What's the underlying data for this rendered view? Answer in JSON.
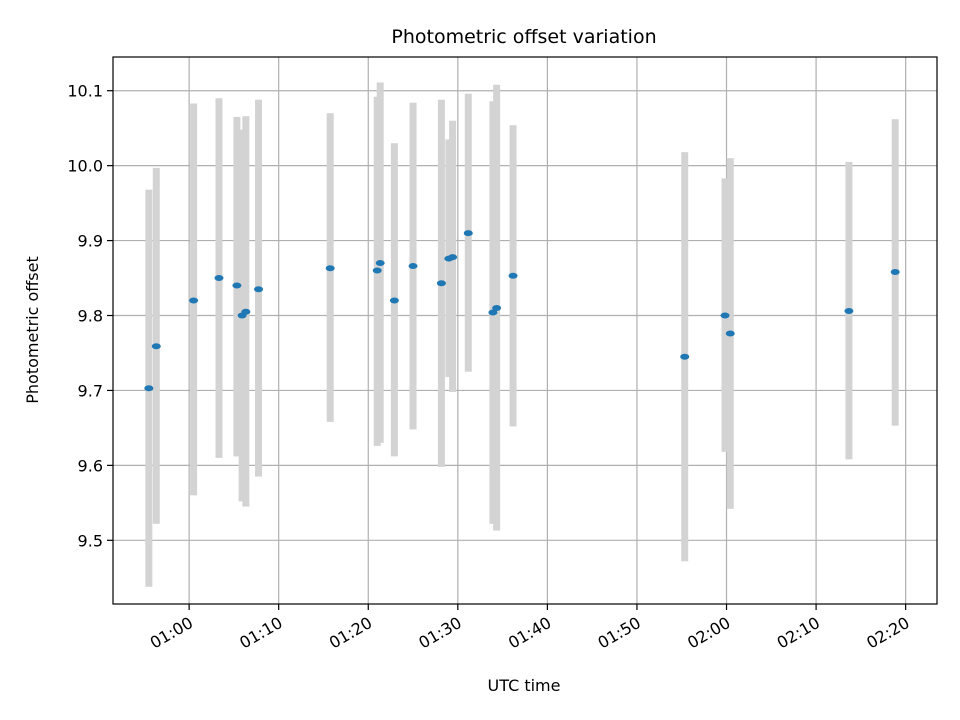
{
  "chart_data": {
    "type": "scatter",
    "title": "Photometric offset variation",
    "xlabel": "UTC time",
    "ylabel": "Photometric offset",
    "x_axis": "time",
    "xlim": [
      "00:51:30",
      "02:23:30"
    ],
    "ylim": [
      9.415,
      10.145
    ],
    "x_ticks": [
      "01:00",
      "01:10",
      "01:20",
      "01:30",
      "01:40",
      "01:50",
      "02:00",
      "02:10",
      "02:20"
    ],
    "y_ticks": [
      9.5,
      9.6,
      9.7,
      9.8,
      9.9,
      10.0,
      10.1
    ],
    "y_tick_labels": [
      "9.5",
      "9.6",
      "9.7",
      "9.8",
      "9.9",
      "10.0",
      "10.1"
    ],
    "grid": true,
    "marker_color": "#1f77b4",
    "errorbar_color": "#d3d3d3",
    "points": [
      {
        "t": "00:55:30",
        "y": 9.703,
        "err_low": 9.438,
        "err_high": 9.968
      },
      {
        "t": "00:56:20",
        "y": 9.759,
        "err_low": 9.522,
        "err_high": 9.997
      },
      {
        "t": "01:00:30",
        "y": 9.82,
        "err_low": 9.56,
        "err_high": 10.083
      },
      {
        "t": "01:03:20",
        "y": 9.85,
        "err_low": 9.61,
        "err_high": 10.09
      },
      {
        "t": "01:05:20",
        "y": 9.84,
        "err_low": 9.612,
        "err_high": 10.065
      },
      {
        "t": "01:05:55",
        "y": 9.8,
        "err_low": 9.552,
        "err_high": 10.048
      },
      {
        "t": "01:06:20",
        "y": 9.805,
        "err_low": 9.545,
        "err_high": 10.066
      },
      {
        "t": "01:07:45",
        "y": 9.835,
        "err_low": 9.585,
        "err_high": 10.088
      },
      {
        "t": "01:15:45",
        "y": 9.863,
        "err_low": 9.658,
        "err_high": 10.07
      },
      {
        "t": "01:21:00",
        "y": 9.86,
        "err_low": 9.626,
        "err_high": 10.092
      },
      {
        "t": "01:21:20",
        "y": 9.87,
        "err_low": 9.63,
        "err_high": 10.111
      },
      {
        "t": "01:22:55",
        "y": 9.82,
        "err_low": 9.612,
        "err_high": 10.03
      },
      {
        "t": "01:25:00",
        "y": 9.866,
        "err_low": 9.648,
        "err_high": 10.084
      },
      {
        "t": "01:28:10",
        "y": 9.843,
        "err_low": 9.598,
        "err_high": 10.088
      },
      {
        "t": "01:29:00",
        "y": 9.876,
        "err_low": 9.718,
        "err_high": 10.035
      },
      {
        "t": "01:29:25",
        "y": 9.878,
        "err_low": 9.698,
        "err_high": 10.06
      },
      {
        "t": "01:31:10",
        "y": 9.91,
        "err_low": 9.725,
        "err_high": 10.096
      },
      {
        "t": "01:33:55",
        "y": 9.804,
        "err_low": 9.522,
        "err_high": 10.086
      },
      {
        "t": "01:34:20",
        "y": 9.81,
        "err_low": 9.513,
        "err_high": 10.108
      },
      {
        "t": "01:36:10",
        "y": 9.853,
        "err_low": 9.652,
        "err_high": 10.054
      },
      {
        "t": "01:55:20",
        "y": 9.745,
        "err_low": 9.472,
        "err_high": 10.018
      },
      {
        "t": "01:59:50",
        "y": 9.8,
        "err_low": 9.618,
        "err_high": 9.983
      },
      {
        "t": "02:00:25",
        "y": 9.776,
        "err_low": 9.542,
        "err_high": 10.01
      },
      {
        "t": "02:13:40",
        "y": 9.806,
        "err_low": 9.608,
        "err_high": 10.005
      },
      {
        "t": "02:18:50",
        "y": 9.858,
        "err_low": 9.653,
        "err_high": 10.062
      }
    ]
  }
}
